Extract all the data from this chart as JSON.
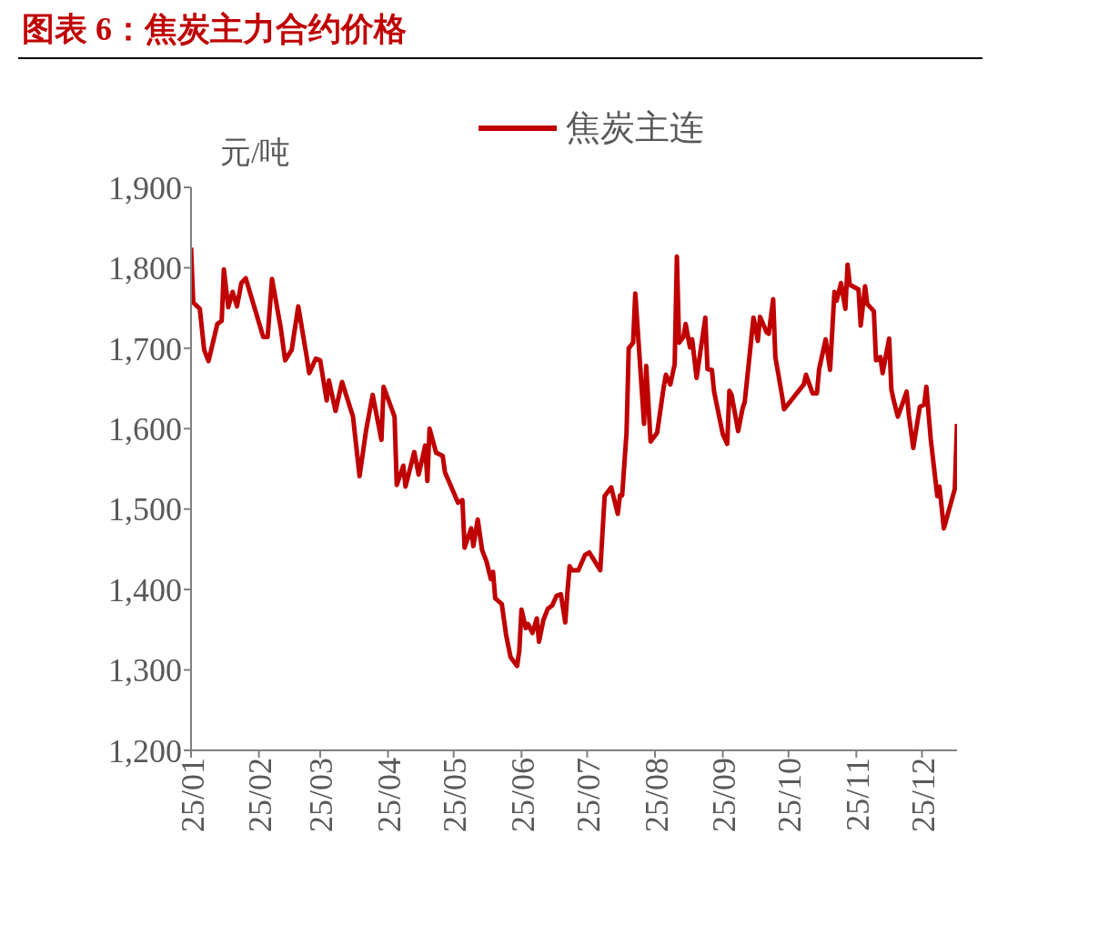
{
  "chart_data": {
    "type": "line",
    "title": "图表 6：焦炭主力合约价格",
    "ylabel": "元/吨",
    "legend": "top",
    "grid": false,
    "marker": "none",
    "line_style": "solid",
    "xlim": [
      "--01-01",
      "--12-17"
    ],
    "xticks": [
      {
        "value": "--01-01",
        "label": "25/01"
      },
      {
        "value": "--02-01",
        "label": "25/02"
      },
      {
        "value": "--03-01",
        "label": "25/03"
      },
      {
        "value": "--04-01",
        "label": "25/04"
      },
      {
        "value": "--05-01",
        "label": "25/05"
      },
      {
        "value": "--06-01",
        "label": "25/06"
      },
      {
        "value": "--07-01",
        "label": "25/07"
      },
      {
        "value": "--08-01",
        "label": "25/08"
      },
      {
        "value": "--09-01",
        "label": "25/09"
      },
      {
        "value": "--10-01",
        "label": "25/10"
      },
      {
        "value": "--11-01",
        "label": "25/11"
      },
      {
        "value": "--12-01",
        "label": "25/12"
      }
    ],
    "ylim": [
      1200,
      1900
    ],
    "yticks": [
      {
        "value": 1200,
        "label": "1,200"
      },
      {
        "value": 1300,
        "label": "1,300"
      },
      {
        "value": 1400,
        "label": "1,400"
      },
      {
        "value": 1500,
        "label": "1,500"
      },
      {
        "value": 1600,
        "label": "1,600"
      },
      {
        "value": 1700,
        "label": "1,700"
      },
      {
        "value": 1800,
        "label": "1,800"
      },
      {
        "value": 1900,
        "label": "1,900"
      }
    ],
    "x": [
      "--01-01",
      "--01-02",
      "--01-05",
      "--01-07",
      "--01-09",
      "--01-13",
      "--01-15",
      "--01-16",
      "--01-18",
      "--01-20",
      "--01-22",
      "--01-24",
      "--01-26",
      "--02-03",
      "--02-05",
      "--02-07",
      "--02-11",
      "--02-13",
      "--02-16",
      "--02-19",
      "--02-23",
      "--02-24",
      "--02-27",
      "--03-01",
      "--03-04",
      "--03-05",
      "--03-08",
      "--03-11",
      "--03-16",
      "--03-19",
      "--03-22",
      "--03-25",
      "--03-29",
      "--03-30",
      "--04-04",
      "--04-05",
      "--04-08",
      "--04-09",
      "--04-13",
      "--04-15",
      "--04-18",
      "--04-19",
      "--04-20",
      "--04-23",
      "--04-26",
      "--04-27",
      "--05-03",
      "--05-05",
      "--05-06",
      "--05-09",
      "--05-10",
      "--05-12",
      "--05-14",
      "--05-16",
      "--05-18",
      "--05-19",
      "--05-20",
      "--05-23",
      "--05-25",
      "--05-27",
      "--05-30",
      "--05-31",
      "--06-01",
      "--06-03",
      "--06-04",
      "--06-06",
      "--06-08",
      "--06-09",
      "--06-11",
      "--06-13",
      "--06-15",
      "--06-17",
      "--06-19",
      "--06-21",
      "--06-22",
      "--06-23",
      "--06-24",
      "--06-27",
      "--06-30",
      "--07-02",
      "--07-07",
      "--07-09",
      "--07-12",
      "--07-15",
      "--07-16",
      "--07-17",
      "--07-19",
      "--07-20",
      "--07-22",
      "--07-23",
      "--07-27",
      "--07-28",
      "--07-30",
      "--08-02",
      "--08-05",
      "--08-06",
      "--08-08",
      "--08-10",
      "--08-11",
      "--08-12",
      "--08-14",
      "--08-15",
      "--08-17",
      "--08-18",
      "--08-20",
      "--08-24",
      "--08-25",
      "--08-27",
      "--08-28",
      "--09-01",
      "--09-03",
      "--09-04",
      "--09-05",
      "--09-08",
      "--09-10",
      "--09-11",
      "--09-13",
      "--09-15",
      "--09-16",
      "--09-17",
      "--09-18",
      "--09-21",
      "--09-22",
      "--09-24",
      "--09-25",
      "--09-28",
      "--09-29",
      "--10-08",
      "--10-09",
      "--10-12",
      "--10-14",
      "--10-15",
      "--10-18",
      "--10-20",
      "--10-22",
      "--10-23",
      "--10-25",
      "--10-27",
      "--10-28",
      "--10-29",
      "--11-02",
      "--11-03",
      "--11-05",
      "--11-06",
      "--11-09",
      "--11-10",
      "--11-12",
      "--11-13",
      "--11-16",
      "--11-17",
      "--11-18",
      "--11-20",
      "--11-24",
      "--11-25",
      "--11-27",
      "--11-30",
      "--12-02",
      "--12-03",
      "--12-05",
      "--12-08",
      "--12-09",
      "--12-11",
      "--12-16",
      "--12-17"
    ],
    "series": [
      {
        "name": "焦炭主连",
        "color": "#c00000",
        "values": [
          1825,
          1757,
          1749,
          1698,
          1684,
          1730,
          1734,
          1798,
          1751,
          1770,
          1752,
          1781,
          1787,
          1714,
          1714,
          1786,
          1725,
          1685,
          1698,
          1752,
          1687,
          1669,
          1687,
          1685,
          1635,
          1660,
          1622,
          1658,
          1615,
          1541,
          1598,
          1642,
          1586,
          1652,
          1615,
          1530,
          1554,
          1528,
          1571,
          1543,
          1579,
          1535,
          1600,
          1570,
          1566,
          1546,
          1508,
          1511,
          1452,
          1476,
          1454,
          1487,
          1449,
          1435,
          1413,
          1422,
          1389,
          1382,
          1343,
          1316,
          1305,
          1324,
          1375,
          1352,
          1357,
          1346,
          1364,
          1335,
          1362,
          1376,
          1380,
          1392,
          1394,
          1359,
          1397,
          1429,
          1424,
          1424,
          1443,
          1446,
          1424,
          1516,
          1527,
          1494,
          1517,
          1517,
          1595,
          1700,
          1707,
          1768,
          1606,
          1678,
          1584,
          1595,
          1652,
          1667,
          1655,
          1680,
          1814,
          1707,
          1714,
          1730,
          1701,
          1711,
          1663,
          1738,
          1674,
          1673,
          1646,
          1593,
          1581,
          1647,
          1642,
          1597,
          1625,
          1633,
          1685,
          1738,
          1725,
          1709,
          1739,
          1720,
          1718,
          1761,
          1689,
          1642,
          1624,
          1655,
          1667,
          1644,
          1644,
          1674,
          1711,
          1673,
          1770,
          1759,
          1781,
          1749,
          1804,
          1779,
          1773,
          1728,
          1777,
          1755,
          1746,
          1685,
          1689,
          1669,
          1712,
          1649,
          1636,
          1615,
          1646,
          1617,
          1576,
          1627,
          1630,
          1652,
          1587,
          1516,
          1528,
          1476,
          1525,
          1606
        ]
      }
    ]
  }
}
